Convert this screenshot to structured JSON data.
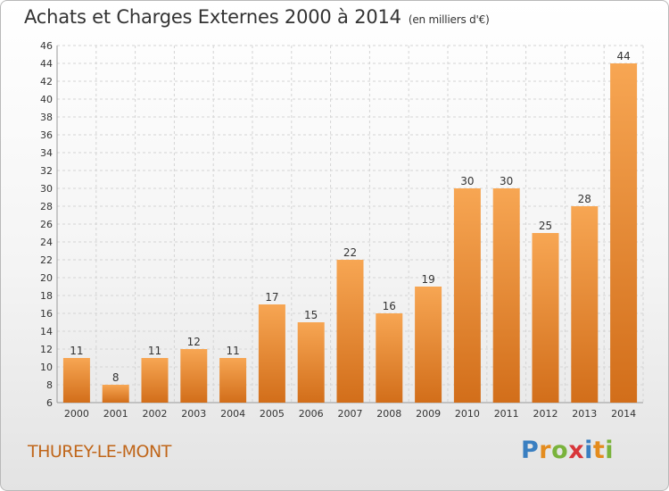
{
  "header": {
    "title": "Achats et Charges Externes 2000 à 2014",
    "subtitle": "(en milliers d'€)"
  },
  "footer": {
    "commune": "THUREY-LE-MONT",
    "logo": {
      "letters": [
        "P",
        "r",
        "o",
        "x",
        "i",
        "t",
        "i"
      ],
      "colors": [
        "#3a7fc1",
        "#e48c1e",
        "#7ab33c",
        "#d8363a",
        "#3a7fc1",
        "#e48c1e",
        "#7ab33c"
      ]
    }
  },
  "chart_data": {
    "type": "bar",
    "categories": [
      "2000",
      "2001",
      "2002",
      "2003",
      "2004",
      "2005",
      "2006",
      "2007",
      "2008",
      "2009",
      "2010",
      "2011",
      "2012",
      "2013",
      "2014"
    ],
    "values": [
      11,
      8,
      11,
      12,
      11,
      17,
      15,
      22,
      16,
      19,
      30,
      30,
      25,
      28,
      44
    ],
    "ylim": [
      6,
      46
    ],
    "yticks": [
      6,
      8,
      10,
      12,
      14,
      16,
      18,
      20,
      22,
      24,
      26,
      28,
      30,
      32,
      34,
      36,
      38,
      40,
      42,
      44,
      46
    ],
    "grid": true,
    "bar_color": "#e9872f"
  }
}
